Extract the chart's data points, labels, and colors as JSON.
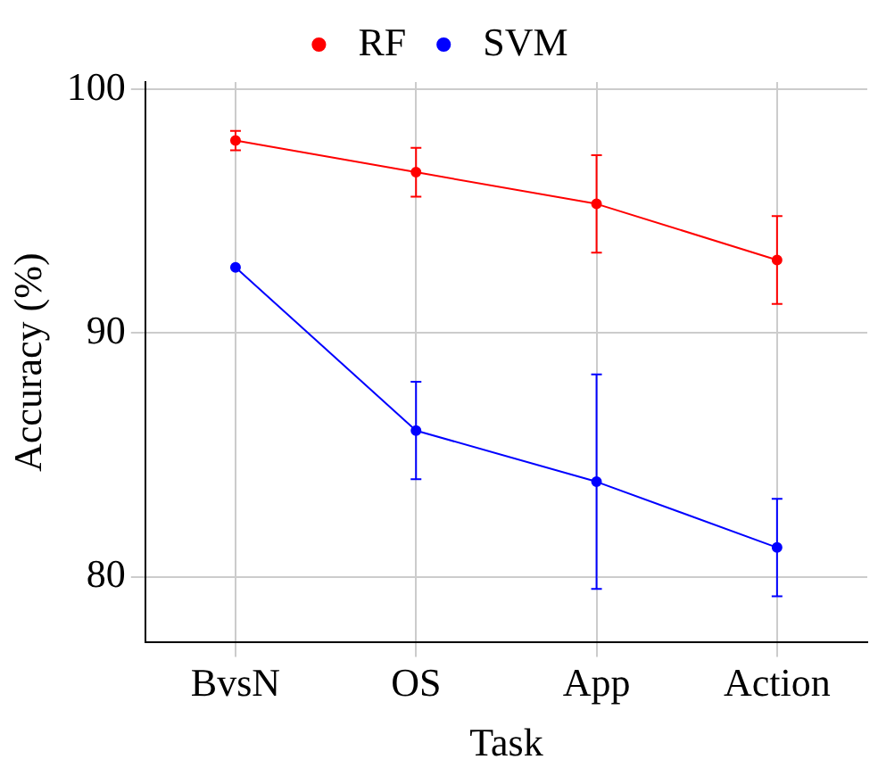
{
  "chart_data": {
    "type": "line",
    "xlabel": "Task",
    "ylabel": "Accuracy (%)",
    "categories": [
      "BvsN",
      "OS",
      "App",
      "Action"
    ],
    "series": [
      {
        "name": "RF",
        "color": "#ff0000",
        "values": [
          97.9,
          96.6,
          95.3,
          93.0
        ],
        "errors": [
          0.4,
          1.0,
          2.0,
          1.8
        ]
      },
      {
        "name": "SVM",
        "color": "#0000ff",
        "values": [
          92.7,
          86.0,
          83.9,
          81.2
        ],
        "errors": [
          null,
          2.0,
          4.4,
          2.0
        ]
      }
    ],
    "ylim": [
      77.3,
      100.3
    ],
    "yticks": [
      80,
      90,
      100
    ],
    "grid": true,
    "legend": "top",
    "marker": "circle",
    "line_style": "solid"
  }
}
